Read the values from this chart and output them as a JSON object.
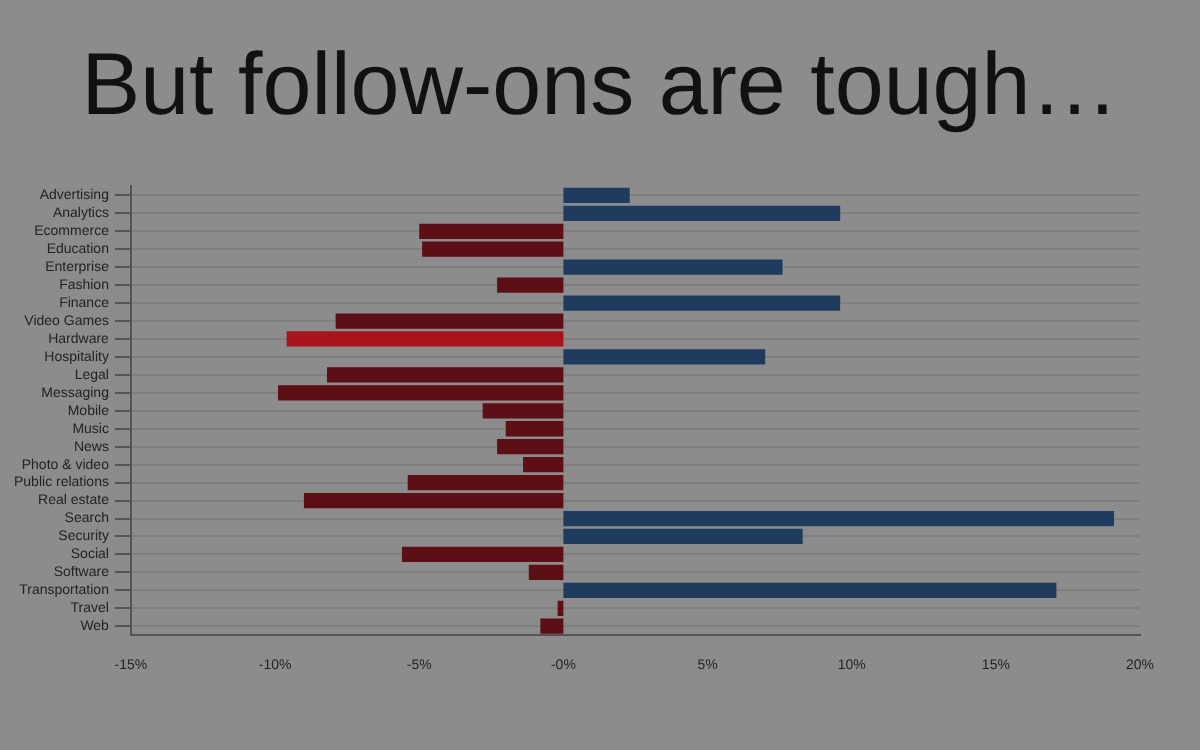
{
  "chart_data": {
    "type": "bar",
    "orientation": "horizontal",
    "title": "But follow-ons are tough…",
    "categories": [
      "Advertising",
      "Analytics",
      "Ecommerce",
      "Education",
      "Enterprise",
      "Fashion",
      "Finance",
      "Video Games",
      "Hardware",
      "Hospitality",
      "Legal",
      "Messaging",
      "Mobile",
      "Music",
      "News",
      "Photo & video",
      "Public relations",
      "Real estate",
      "Search",
      "Security",
      "Social",
      "Software",
      "Transportation",
      "Travel",
      "Web"
    ],
    "values": [
      2.3,
      9.6,
      -5.0,
      -4.9,
      7.6,
      -2.3,
      9.6,
      -7.9,
      -9.6,
      7.0,
      -8.2,
      -9.9,
      -2.8,
      -2.0,
      -2.3,
      -1.4,
      -5.4,
      -9.0,
      19.1,
      8.3,
      -5.6,
      -1.2,
      17.1,
      -0.2,
      -0.8
    ],
    "colors": [
      "#1f3c5e",
      "#1f3c5e",
      "#5c0f14",
      "#5c0f14",
      "#1f3c5e",
      "#5c0f14",
      "#1f3c5e",
      "#5c0f14",
      "#a8141c",
      "#1f3c5e",
      "#5c0f14",
      "#5c0f14",
      "#5c0f14",
      "#5c0f14",
      "#5c0f14",
      "#5c0f14",
      "#5c0f14",
      "#5c0f14",
      "#1f3c5e",
      "#1f3c5e",
      "#5c0f14",
      "#5c0f14",
      "#1f3c5e",
      "#5c0f14",
      "#5c0f14"
    ],
    "xlim": [
      -15,
      20
    ],
    "xticks": [
      {
        "value": -15,
        "label": "-15%"
      },
      {
        "value": -10,
        "label": "-10%"
      },
      {
        "value": -5,
        "label": "-5%"
      },
      {
        "value": 0,
        "label": "-0%"
      },
      {
        "value": 5,
        "label": "5%"
      },
      {
        "value": 10,
        "label": "10%"
      },
      {
        "value": 15,
        "label": "15%"
      },
      {
        "value": 20,
        "label": "20%"
      }
    ],
    "grid": "y",
    "legend": false
  }
}
